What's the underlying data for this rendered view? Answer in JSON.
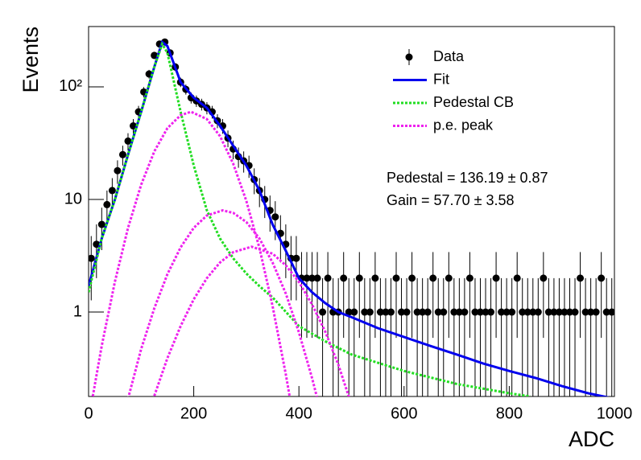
{
  "chart_data": {
    "type": "line",
    "ylabel": "Events",
    "xlabel": "ADC",
    "xlim": [
      0,
      1000
    ],
    "xticks": [
      0,
      200,
      400,
      600,
      800,
      1000
    ],
    "ylim": [
      0.178,
      343
    ],
    "yticks": [
      1,
      10,
      {
        "value": 100,
        "label": "10²"
      }
    ],
    "ylog": true,
    "legend": "top-right",
    "annotations": [
      "Pedestal = 136.19 ± 0.87",
      "Gain = 57.70 ± 3.58"
    ],
    "series": [
      {
        "name": "Data",
        "color": "#000000",
        "style": "markers",
        "x": [
          5,
          15,
          25,
          35,
          45,
          55,
          65,
          75,
          85,
          95,
          105,
          115,
          125,
          135,
          145,
          155,
          165,
          175,
          185,
          195,
          205,
          215,
          225,
          235,
          245,
          255,
          265,
          275,
          285,
          295,
          305,
          315,
          325,
          335,
          345,
          355,
          365,
          375,
          385,
          395,
          405,
          415,
          425,
          435,
          445,
          455,
          465,
          475,
          485,
          495,
          505,
          515,
          525,
          535,
          545,
          555,
          565,
          575,
          585,
          595,
          605,
          615,
          625,
          635,
          645,
          655,
          665,
          675,
          685,
          695,
          705,
          715,
          725,
          735,
          745,
          755,
          765,
          775,
          785,
          795,
          805,
          815,
          825,
          835,
          845,
          855,
          865,
          875,
          885,
          895,
          905,
          915,
          925,
          935,
          945,
          955,
          965,
          975,
          985,
          995
        ],
        "values": [
          3,
          4,
          6,
          9,
          12,
          18,
          25,
          33,
          45,
          60,
          90,
          130,
          190,
          240,
          250,
          200,
          150,
          110,
          95,
          80,
          75,
          70,
          65,
          60,
          50,
          45,
          35,
          28,
          24,
          22,
          20,
          15,
          12,
          10,
          8,
          7,
          5,
          4,
          3,
          3,
          2,
          2,
          2,
          2,
          1,
          2,
          1,
          1,
          2,
          1,
          1,
          2,
          1,
          1,
          2,
          1,
          1,
          1,
          2,
          1,
          1,
          2,
          1,
          1,
          1,
          2,
          1,
          1,
          2,
          1,
          1,
          1,
          2,
          1,
          1,
          1,
          1,
          2,
          1,
          1,
          1,
          2,
          1,
          1,
          1,
          1,
          2,
          1,
          1,
          1,
          1,
          1,
          1,
          2,
          1,
          1,
          1,
          2,
          1,
          1
        ],
        "errors": [
          1.73,
          2,
          2.45,
          3,
          3.46,
          4.24,
          5,
          5.74,
          6.71,
          7.75,
          9.49,
          11.4,
          13.78,
          15.49,
          15.81,
          14.14,
          12.25,
          10.49,
          9.75,
          8.94,
          8.66,
          8.37,
          8.06,
          7.75,
          7.07,
          6.71,
          5.92,
          5.29,
          4.9,
          4.69,
          4.47,
          3.87,
          3.46,
          3.16,
          2.83,
          2.65,
          2.24,
          2,
          1.73,
          1.73,
          1.41,
          1.41,
          1.41,
          1.41,
          1,
          1.41,
          1,
          1,
          1.41,
          1,
          1,
          1.41,
          1,
          1,
          1.41,
          1,
          1,
          1,
          1.41,
          1,
          1,
          1.41,
          1,
          1,
          1,
          1.41,
          1,
          1,
          1.41,
          1,
          1,
          1,
          1.41,
          1,
          1,
          1,
          1,
          1.41,
          1,
          1,
          1,
          1.41,
          1,
          1,
          1,
          1,
          1.41,
          1,
          1,
          1,
          1,
          1,
          1,
          1.41,
          1,
          1,
          1,
          1.41,
          1,
          1
        ]
      },
      {
        "name": "Fit",
        "color": "#0000ee",
        "style": "solid",
        "x": [
          0,
          25,
          50,
          75,
          100,
          125,
          140,
          150,
          175,
          200,
          225,
          250,
          275,
          300,
          325,
          350,
          375,
          400,
          425,
          450,
          475,
          500,
          550,
          600,
          650,
          700,
          750,
          800,
          850,
          900,
          950,
          1000
        ],
        "values": [
          1.7,
          4.5,
          10,
          25,
          60,
          150,
          250,
          230,
          110,
          80,
          65,
          45,
          30,
          20,
          12,
          6,
          3.5,
          2,
          1.5,
          1.2,
          1.0,
          0.9,
          0.72,
          0.6,
          0.5,
          0.42,
          0.35,
          0.3,
          0.26,
          0.22,
          0.19,
          0.17
        ]
      },
      {
        "name": "Pedestal CB",
        "color": "#22dd22",
        "style": "dotted",
        "x": [
          0,
          25,
          50,
          75,
          100,
          125,
          140,
          150,
          175,
          200,
          225,
          250,
          275,
          300,
          325,
          350,
          400,
          450,
          500,
          600,
          700,
          800,
          840
        ],
        "values": [
          1.5,
          4.5,
          10,
          25,
          60,
          150,
          240,
          200,
          60,
          20,
          8,
          4.5,
          3,
          2.2,
          1.7,
          1.35,
          0.75,
          0.55,
          0.42,
          0.3,
          0.23,
          0.19,
          0.178
        ]
      },
      {
        "name": "p.e. peak",
        "color": "#ee22ee",
        "style": "dotted",
        "x": [
          0,
          25,
          50,
          75,
          100,
          125,
          150,
          175,
          195,
          225,
          250,
          275,
          300,
          325,
          350,
          375,
          400,
          null,
          75,
          100,
          125,
          150,
          175,
          200,
          225,
          255,
          275,
          300,
          325,
          350,
          375,
          400,
          425,
          450,
          null,
          125,
          150,
          175,
          200,
          225,
          250,
          275,
          310,
          350,
          375,
          400,
          425,
          450,
          475,
          500
        ],
        "values": [
          0.11,
          0.5,
          1.86,
          5.6,
          13.5,
          26.7,
          43,
          56,
          60,
          51.7,
          36.4,
          20.8,
          9.7,
          3.7,
          1.13,
          0.28,
          0.06,
          null,
          0.17,
          0.47,
          1.08,
          2.17,
          3.75,
          5.6,
          7.2,
          8,
          7.6,
          6.3,
          4.5,
          2.75,
          1.46,
          0.66,
          0.26,
          0.09,
          null,
          0.18,
          0.39,
          0.75,
          1.3,
          2.0,
          2.76,
          3.4,
          3.8,
          3.3,
          2.6,
          1.85,
          1.17,
          0.67,
          0.34,
          0.15
        ]
      }
    ]
  }
}
